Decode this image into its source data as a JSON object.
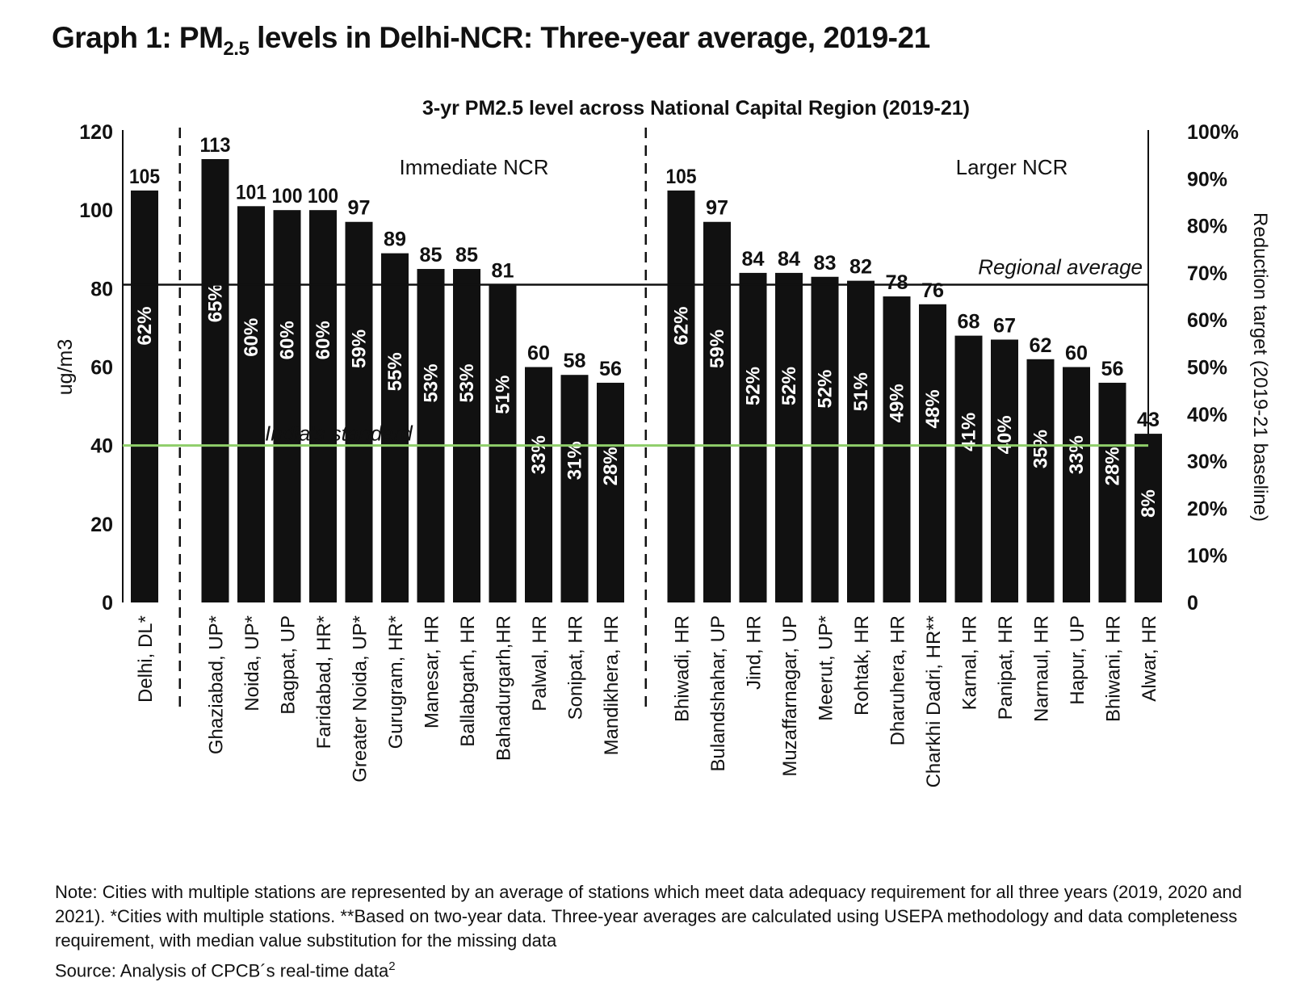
{
  "title": {
    "prefix": "Graph 1: PM",
    "subscript": "2.5",
    "suffix": " levels in Delhi-NCR: Three-year average, 2019-21"
  },
  "notes": "Note: Cities with multiple stations are represented by an average of stations which meet data adequacy requirement for all three years (2019, 2020 and 2021). *Cities with multiple stations. **Based on two-year data. Three-year averages are calculated using USEPA methodology and data completeness requirement, with median value substitution for the missing data",
  "source": {
    "text": "Source: Analysis of CPCB´s real-time data",
    "superscript": "2"
  },
  "colors": {
    "bar": "#111111",
    "regional_average_line": "#111111",
    "indias_standard_line": "#8fce6a",
    "axis": "#111111",
    "text": "#111111"
  },
  "chart_data": {
    "type": "bar",
    "title": "3-yr PM2.5 level across National Capital Region (2019-21)",
    "ylabel": "ug/m3",
    "y2label": "Reduction target (2019-21 baseline)",
    "ylim": [
      0,
      120
    ],
    "yticks": [
      "0",
      "20",
      "40",
      "60",
      "80",
      "100",
      "120"
    ],
    "y2lim": [
      0,
      100
    ],
    "y2ticks": [
      "0",
      "10%",
      "20%",
      "30%",
      "40%",
      "50%",
      "60%",
      "70%",
      "80%",
      "90%",
      "100%"
    ],
    "grid": false,
    "groups": [
      {
        "label": "",
        "bars": [
          {
            "category": "Delhi, DL*",
            "value": 105,
            "reduction": "62%"
          }
        ]
      },
      {
        "label": "Immediate NCR",
        "bars": [
          {
            "category": "Ghaziabad, UP*",
            "value": 113,
            "reduction": "65%"
          },
          {
            "category": "Noida, UP*",
            "value": 101,
            "reduction": "60%"
          },
          {
            "category": "Bagpat, UP",
            "value": 100,
            "reduction": "60%"
          },
          {
            "category": "Faridabad, HR*",
            "value": 100,
            "reduction": "60%"
          },
          {
            "category": "Greater Noida, UP*",
            "value": 97,
            "reduction": "59%"
          },
          {
            "category": "Gurugram, HR*",
            "value": 89,
            "reduction": "55%"
          },
          {
            "category": "Manesar, HR",
            "value": 85,
            "reduction": "53%"
          },
          {
            "category": "Ballabgarh, HR",
            "value": 85,
            "reduction": "53%"
          },
          {
            "category": "Bahadurgarh,HR",
            "value": 81,
            "reduction": "51%"
          },
          {
            "category": "Palwal, HR",
            "value": 60,
            "reduction": "33%"
          },
          {
            "category": "Sonipat, HR",
            "value": 58,
            "reduction": "31%"
          },
          {
            "category": "Mandikhera, HR",
            "value": 56,
            "reduction": "28%"
          }
        ]
      },
      {
        "label": "Larger NCR",
        "bars": [
          {
            "category": "Bhiwadi, HR",
            "value": 105,
            "reduction": "62%"
          },
          {
            "category": "Bulandshahar, UP",
            "value": 97,
            "reduction": "59%"
          },
          {
            "category": "Jind, HR",
            "value": 84,
            "reduction": "52%"
          },
          {
            "category": "Muzaffarnagar, UP",
            "value": 84,
            "reduction": "52%"
          },
          {
            "category": "Meerut, UP*",
            "value": 83,
            "reduction": "52%"
          },
          {
            "category": "Rohtak, HR",
            "value": 82,
            "reduction": "51%"
          },
          {
            "category": "Dharuhera, HR",
            "value": 78,
            "reduction": "49%"
          },
          {
            "category": "Charkhi Dadri, HR**",
            "value": 76,
            "reduction": "48%"
          },
          {
            "category": "Karnal, HR",
            "value": 68,
            "reduction": "41%"
          },
          {
            "category": "Panipat, HR",
            "value": 67,
            "reduction": "40%"
          },
          {
            "category": "Narnaul, HR",
            "value": 62,
            "reduction": "35%"
          },
          {
            "category": "Hapur, UP",
            "value": 60,
            "reduction": "33%"
          },
          {
            "category": "Bhiwani, HR",
            "value": 56,
            "reduction": "28%"
          },
          {
            "category": "Alwar, HR",
            "value": 43,
            "reduction": "8%"
          }
        ]
      }
    ],
    "reference_lines": [
      {
        "label": "Regional average",
        "value": 81,
        "color": "#111111"
      },
      {
        "label": "India's standard",
        "value": 40,
        "color": "#8fce6a"
      }
    ]
  }
}
